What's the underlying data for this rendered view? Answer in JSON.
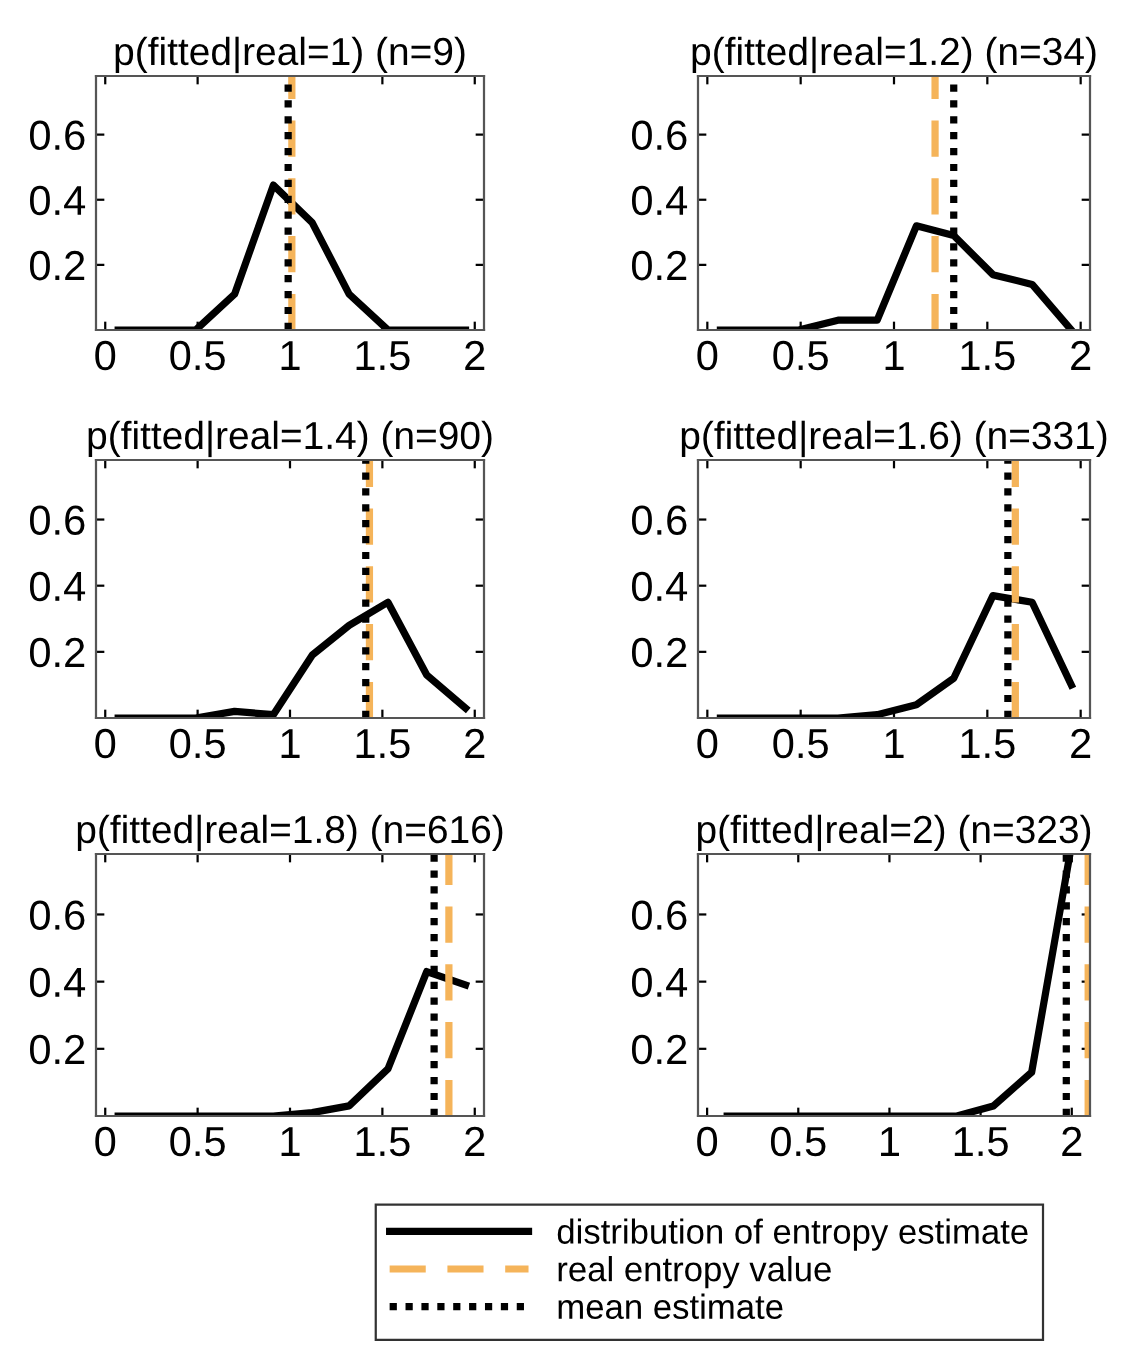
{
  "chart_data": [
    {
      "type": "line",
      "title": "p(fitted|real=1) (n=9)",
      "x": [
        0.07,
        0.28,
        0.49,
        0.7,
        0.91,
        1.12,
        1.32,
        1.53,
        1.74,
        1.95
      ],
      "series": [
        {
          "name": "distribution of entropy estimate",
          "color": "#000000",
          "values": [
            0,
            0,
            0,
            0.11,
            0.445,
            0.33,
            0.11,
            0,
            0,
            0
          ]
        }
      ],
      "ref_lines": [
        {
          "axis": "x",
          "value": 1.01,
          "label": "real entropy value",
          "color": "#f5b45a",
          "line_style": "dashed"
        },
        {
          "axis": "x",
          "value": 0.99,
          "label": "mean estimate",
          "color": "#000000",
          "line_style": "dotted"
        }
      ],
      "xlim": [
        -0.05,
        2.05
      ],
      "ylim": [
        0,
        0.78
      ],
      "xticks": [
        0,
        0.5,
        1,
        1.5,
        2
      ],
      "yticks": [
        0.2,
        0.4,
        0.6
      ],
      "legend": "bottom",
      "grid": false
    },
    {
      "type": "line",
      "title": "p(fitted|real=1.2) (n=34)",
      "x": [
        0.07,
        0.28,
        0.49,
        0.7,
        0.91,
        1.12,
        1.32,
        1.53,
        1.74,
        1.95
      ],
      "series": [
        {
          "color": "#000000",
          "values": [
            0,
            0,
            0,
            0.03,
            0.03,
            0.32,
            0.29,
            0.17,
            0.14,
            0
          ]
        }
      ],
      "ref_lines": [
        {
          "axis": "x",
          "value": 1.22,
          "color": "#f5b45a",
          "line_style": "dashed"
        },
        {
          "axis": "x",
          "value": 1.32,
          "color": "#000000",
          "line_style": "dotted"
        }
      ],
      "xlim": [
        -0.05,
        2.05
      ],
      "ylim": [
        0,
        0.78
      ],
      "xticks": [
        0,
        0.5,
        1,
        1.5,
        2
      ],
      "yticks": [
        0.2,
        0.4,
        0.6
      ],
      "grid": false
    },
    {
      "type": "line",
      "title": "p(fitted|real=1.4) (n=90)",
      "x": [
        0.07,
        0.28,
        0.49,
        0.7,
        0.91,
        1.12,
        1.32,
        1.53,
        1.74,
        1.95
      ],
      "series": [
        {
          "color": "#000000",
          "values": [
            0,
            0,
            0,
            0.02,
            0.01,
            0.19,
            0.28,
            0.35,
            0.13,
            0.03
          ]
        }
      ],
      "ref_lines": [
        {
          "axis": "x",
          "value": 1.43,
          "color": "#f5b45a",
          "line_style": "dashed"
        },
        {
          "axis": "x",
          "value": 1.41,
          "color": "#000000",
          "line_style": "dotted"
        }
      ],
      "xlim": [
        -0.05,
        2.05
      ],
      "ylim": [
        0,
        0.78
      ],
      "xticks": [
        0,
        0.5,
        1,
        1.5,
        2
      ],
      "yticks": [
        0.2,
        0.4,
        0.6
      ],
      "grid": false
    },
    {
      "type": "line",
      "title": "p(fitted|real=1.6) (n=331)",
      "x": [
        0.07,
        0.28,
        0.49,
        0.7,
        0.91,
        1.12,
        1.32,
        1.53,
        1.74,
        1.95
      ],
      "series": [
        {
          "color": "#000000",
          "values": [
            0,
            0,
            0,
            0,
            0.01,
            0.04,
            0.12,
            0.37,
            0.35,
            0.1
          ]
        }
      ],
      "ref_lines": [
        {
          "axis": "x",
          "value": 1.65,
          "color": "#f5b45a",
          "line_style": "dashed"
        },
        {
          "axis": "x",
          "value": 1.61,
          "color": "#000000",
          "line_style": "dotted"
        }
      ],
      "xlim": [
        -0.05,
        2.05
      ],
      "ylim": [
        0,
        0.78
      ],
      "xticks": [
        0,
        0.5,
        1,
        1.5,
        2
      ],
      "yticks": [
        0.2,
        0.4,
        0.6
      ],
      "grid": false
    },
    {
      "type": "line",
      "title": "p(fitted|real=1.8) (n=616)",
      "x": [
        0.07,
        0.28,
        0.49,
        0.7,
        0.91,
        1.12,
        1.32,
        1.53,
        1.74,
        1.95
      ],
      "series": [
        {
          "color": "#000000",
          "values": [
            0,
            0,
            0,
            0,
            0,
            0.01,
            0.03,
            0.14,
            0.43,
            0.39
          ]
        }
      ],
      "ref_lines": [
        {
          "axis": "x",
          "value": 1.86,
          "color": "#f5b45a",
          "line_style": "dashed"
        },
        {
          "axis": "x",
          "value": 1.78,
          "color": "#000000",
          "line_style": "dotted"
        }
      ],
      "xlim": [
        -0.05,
        2.05
      ],
      "ylim": [
        0,
        0.78
      ],
      "xticks": [
        0,
        0.5,
        1,
        1.5,
        2
      ],
      "yticks": [
        0.2,
        0.4,
        0.6
      ],
      "grid": false
    },
    {
      "type": "line",
      "title": "p(fitted|real=2) (n=323)",
      "x": [
        0.11,
        0.32,
        0.53,
        0.74,
        0.95,
        1.16,
        1.37,
        1.57,
        1.78,
        1.99
      ],
      "series": [
        {
          "color": "#000000",
          "values": [
            0,
            0,
            0,
            0,
            0,
            0,
            0,
            0.03,
            0.13,
            0.78
          ]
        }
      ],
      "ref_lines": [
        {
          "axis": "x",
          "value": 2.09,
          "color": "#f5b45a",
          "line_style": "dashed"
        },
        {
          "axis": "x",
          "value": 1.97,
          "color": "#000000",
          "line_style": "dotted"
        }
      ],
      "xlim": [
        -0.05,
        2.1
      ],
      "ylim": [
        0,
        0.78
      ],
      "xticks": [
        0,
        0.5,
        1,
        1.5,
        2
      ],
      "yticks": [
        0.2,
        0.4,
        0.6
      ],
      "grid": false
    }
  ]
}
